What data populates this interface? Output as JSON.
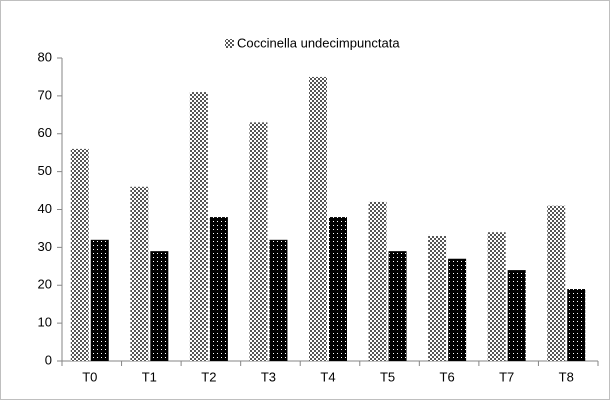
{
  "chart_data": {
    "type": "bar",
    "categories": [
      "T0",
      "T1",
      "T2",
      "T3",
      "T4",
      "T5",
      "T6",
      "T7",
      "T8"
    ],
    "series": [
      {
        "name": "Coccinella undecimpunctata",
        "color": "#555555",
        "values": [
          56,
          46,
          71,
          63,
          75,
          42,
          33,
          34,
          41
        ]
      },
      {
        "color": "#000000",
        "values": [
          32,
          29,
          38,
          32,
          38,
          29,
          27,
          24,
          19
        ]
      }
    ],
    "ylim": [
      0,
      80
    ],
    "yticks": [
      0,
      10,
      20,
      30,
      40,
      50,
      60,
      70,
      80
    ],
    "grid": false,
    "legend": "top"
  }
}
